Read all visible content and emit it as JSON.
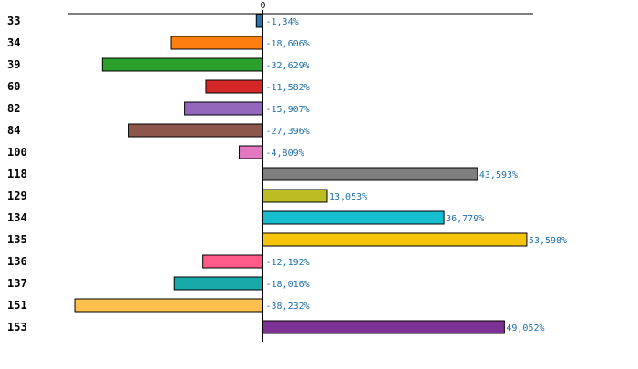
{
  "chart_data": {
    "type": "bar",
    "orientation": "horizontal",
    "title": "",
    "xlabel": "",
    "ylabel": "",
    "zero_tick_label": "0",
    "grid": false,
    "legend": "none",
    "xlim": [
      -40,
      56
    ],
    "categories": [
      "33",
      "34",
      "39",
      "60",
      "82",
      "84",
      "100",
      "118",
      "129",
      "134",
      "135",
      "136",
      "137",
      "151",
      "153"
    ],
    "values": [
      -1.34,
      -18.606,
      -32.629,
      -11.582,
      -15.907,
      -27.396,
      -4.809,
      43.593,
      13.053,
      36.779,
      53.598,
      -12.192,
      -18.016,
      -38.232,
      49.052
    ],
    "value_labels": [
      "-1,34%",
      "-18,606%",
      "-32,629%",
      "-11,582%",
      "-15,907%",
      "-27,396%",
      "-4,809%",
      "43,593%",
      "13,053%",
      "36,779%",
      "53,598%",
      "-12,192%",
      "-18,016%",
      "-38,232%",
      "49,052%"
    ],
    "bar_colors": [
      "#1f77b4",
      "#ff7f0e",
      "#2ca02c",
      "#d62728",
      "#9467bd",
      "#8c564b",
      "#e377c2",
      "#7f7f7f",
      "#bcbd22",
      "#17becf",
      "#f5c30a",
      "#ff5a8a",
      "#17aaa8",
      "#ffc04d",
      "#7b3294"
    ],
    "label_colors": [
      "#000000",
      "#000000",
      "#000000",
      "#000000",
      "#000000",
      "#000000",
      "#ff0000",
      "#000000",
      "#000000",
      "#000000",
      "#000000",
      "#000000",
      "#000000",
      "#000000",
      "#000000"
    ],
    "value_label_color": "#1f6fa8",
    "axis_color": "#000000",
    "bar_stroke_color": "#000000"
  }
}
